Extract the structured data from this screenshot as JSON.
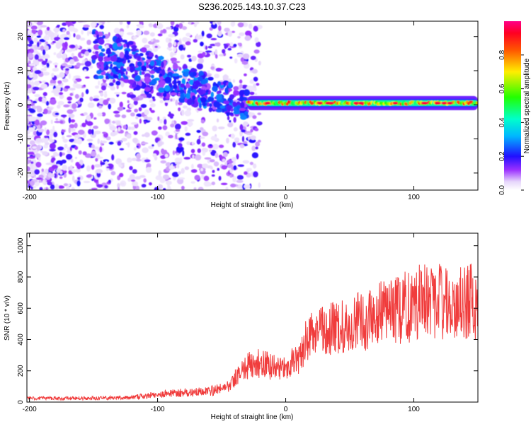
{
  "title": "S236.2025.143.10.37.C23",
  "chart_data": [
    {
      "type": "heatmap",
      "name": "spectrogram",
      "xlabel": "Height of straight line (km)",
      "ylabel": "Frequency (Hz)",
      "xlim": [
        -202,
        150
      ],
      "ylim": [
        -25,
        24.5
      ],
      "xticks": [
        -200,
        -100,
        0,
        100
      ],
      "yticks": [
        -20,
        -10,
        0,
        10,
        20
      ],
      "colorbar": {
        "label": "Normalized spectral amplitude",
        "range": [
          0,
          1
        ],
        "ticks": [
          "0.0",
          "0.2",
          "0.4",
          "0.6",
          "0.8"
        ],
        "tick_values": [
          0,
          0.2,
          0.4,
          0.6,
          0.8
        ],
        "colormap": "rainbow (white → violet → blue → cyan → green → yellow → red → magenta)"
      },
      "features": {
        "noise_region_x": [
          -202,
          -20
        ],
        "converging_band": {
          "x": [
            -150,
            -30
          ],
          "freq": [
            15,
            0
          ]
        },
        "stable_band": {
          "x": [
            -30,
            150
          ],
          "freq": 0.5,
          "peak_amplitude": 0.95
        }
      }
    },
    {
      "type": "line",
      "name": "snr",
      "xlabel": "Height of straight line (km)",
      "ylabel": "SNR (10 * v/v)",
      "xlim": [
        -202,
        150
      ],
      "ylim": [
        0,
        1080
      ],
      "xticks": [
        -200,
        -100,
        0,
        100
      ],
      "yticks": [
        0,
        200,
        400,
        600,
        800,
        1000
      ],
      "color": "#f03c3c",
      "trend": [
        [
          -202,
          25
        ],
        [
          -150,
          25
        ],
        [
          -120,
          30
        ],
        [
          -100,
          50
        ],
        [
          -80,
          60
        ],
        [
          -60,
          70
        ],
        [
          -45,
          100
        ],
        [
          -40,
          150
        ],
        [
          -35,
          200
        ],
        [
          -30,
          230
        ],
        [
          -20,
          250
        ],
        [
          -10,
          220
        ],
        [
          0,
          240
        ],
        [
          10,
          260
        ],
        [
          15,
          380
        ],
        [
          20,
          420
        ],
        [
          25,
          460
        ],
        [
          30,
          470
        ],
        [
          40,
          480
        ],
        [
          50,
          490
        ],
        [
          60,
          520
        ],
        [
          70,
          560
        ],
        [
          80,
          560
        ],
        [
          90,
          600
        ],
        [
          100,
          620
        ],
        [
          110,
          660
        ],
        [
          120,
          640
        ],
        [
          130,
          620
        ],
        [
          140,
          640
        ],
        [
          150,
          650
        ]
      ]
    }
  ]
}
